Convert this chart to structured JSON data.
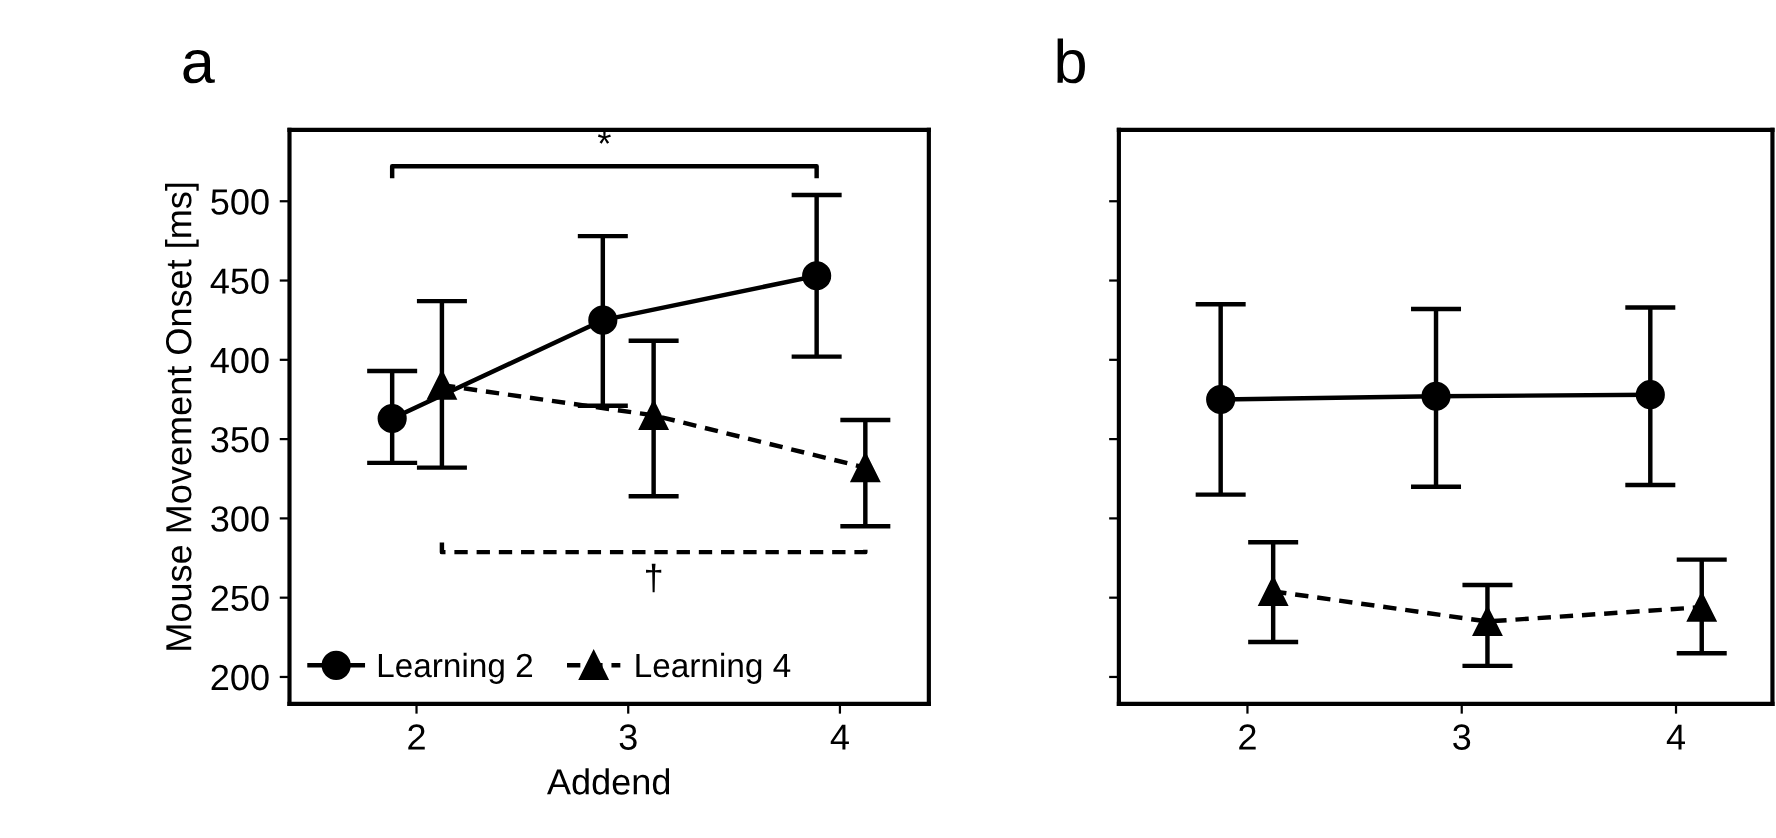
{
  "chart_data": [
    {
      "type": "line",
      "title": "a",
      "xlabel": "Addend",
      "ylabel": "Mouse Movement Onset [ms]",
      "xlim": [
        1.4,
        4.42
      ],
      "ylim": [
        183,
        545
      ],
      "xticks": [
        2,
        3,
        4
      ],
      "yticks": [
        200,
        250,
        300,
        350,
        400,
        450,
        500
      ],
      "legend": "bottom left",
      "grid": false,
      "annotations": [
        "*",
        "†"
      ],
      "series": [
        {
          "name": "Learning 2",
          "color": "#000000",
          "marker": "circle",
          "line_style": "solid",
          "x": [
            1.885,
            2.88,
            3.89
          ],
          "values": [
            363,
            425,
            453
          ],
          "errors": [
            [
              335,
              393
            ],
            [
              371,
              478
            ],
            [
              402,
              504
            ]
          ]
        },
        {
          "name": "Learning 4",
          "color": "#000000",
          "marker": "triangle",
          "line_style": "dashed",
          "x": [
            2.12,
            3.12,
            4.12
          ],
          "values": [
            384,
            365,
            332
          ],
          "errors": [
            [
              332,
              437
            ],
            [
              314,
              412
            ],
            [
              295,
              362
            ]
          ]
        }
      ]
    },
    {
      "type": "line",
      "title": "b",
      "xlim": [
        1.4,
        4.45
      ],
      "ylim": [
        183,
        545
      ],
      "xticks": [
        2,
        3,
        4
      ],
      "yticks": [
        {
          "value": 200,
          "label": null
        },
        {
          "value": 250,
          "label": null
        },
        {
          "value": 300,
          "label": null
        },
        {
          "value": 350,
          "label": null
        },
        {
          "value": 400,
          "label": null
        },
        {
          "value": 450,
          "label": null
        },
        {
          "value": 500,
          "label": null
        }
      ],
      "tick_labels": "x",
      "grid": false,
      "series": [
        {
          "color": "#000000",
          "marker": "circle",
          "line_style": "solid",
          "x": [
            1.875,
            2.88,
            3.88
          ],
          "values": [
            375,
            377,
            378
          ],
          "errors": [
            [
              315,
              435
            ],
            [
              320,
              432
            ],
            [
              321,
              433
            ]
          ]
        },
        {
          "color": "#000000",
          "marker": "triangle",
          "line_style": "dashed",
          "x": [
            2.12,
            3.12,
            4.12
          ],
          "values": [
            254,
            235,
            244
          ],
          "errors": [
            [
              222,
              285
            ],
            [
              207,
              258
            ],
            [
              215,
              274
            ]
          ]
        }
      ]
    }
  ]
}
